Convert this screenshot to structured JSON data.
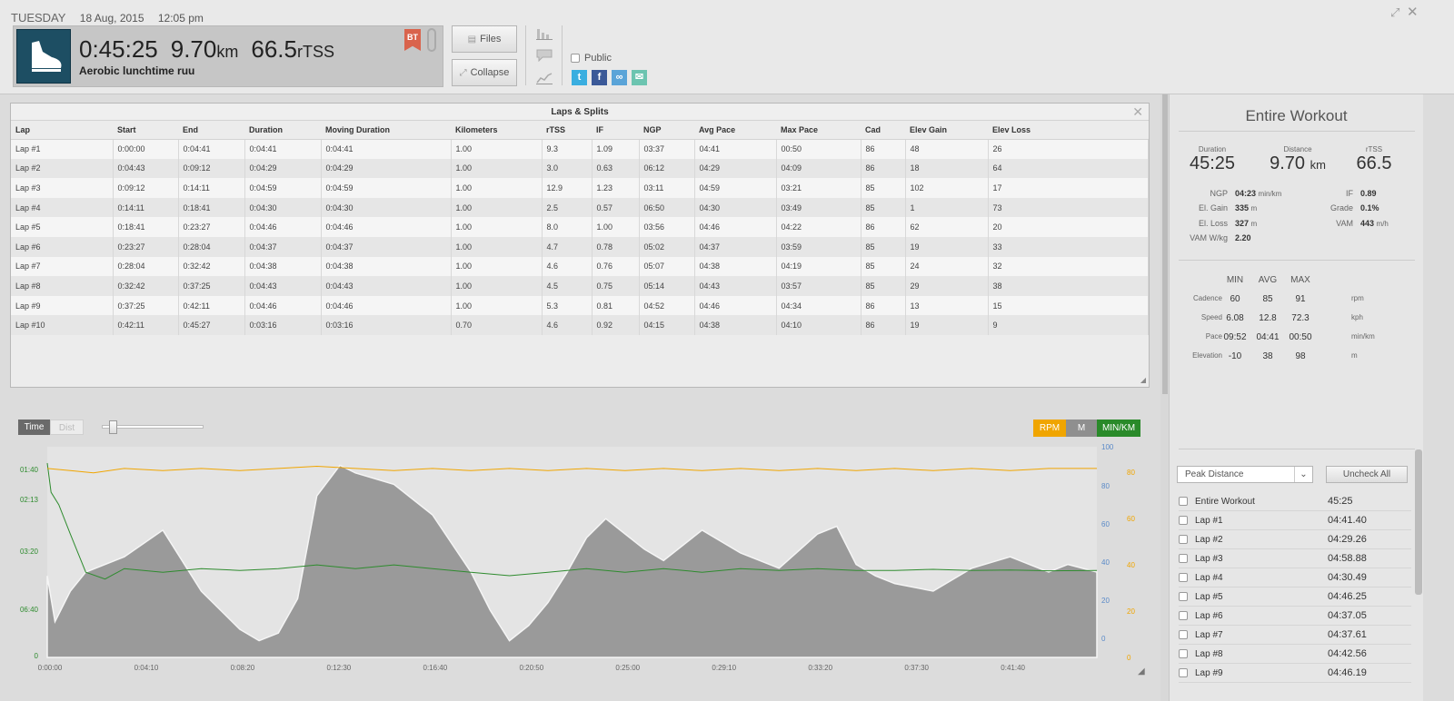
{
  "header": {
    "day": "TUESDAY",
    "date": "18 Aug, 2015",
    "time": "12:05 pm",
    "duration": "0:45:25",
    "distance": "9.70",
    "distance_unit": "km",
    "tss": "66.5",
    "tss_unit": "rTSS",
    "workout_title": "Aerobic lunchtime ruu",
    "badge": "BT",
    "files_label": "Files",
    "collapse_label": "Collapse",
    "public_label": "Public"
  },
  "laps": {
    "title": "Laps & Splits",
    "columns": [
      "Lap",
      "Start",
      "End",
      "Duration",
      "Moving Duration",
      "Kilometers",
      "rTSS",
      "IF",
      "NGP",
      "Avg Pace",
      "Max Pace",
      "Cad",
      "Elev Gain",
      "Elev Loss"
    ],
    "rows": [
      [
        "Lap #1",
        "0:00:00",
        "0:04:41",
        "0:04:41",
        "0:04:41",
        "1.00",
        "9.3",
        "1.09",
        "03:37",
        "04:41",
        "00:50",
        "86",
        "48",
        "26"
      ],
      [
        "Lap #2",
        "0:04:43",
        "0:09:12",
        "0:04:29",
        "0:04:29",
        "1.00",
        "3.0",
        "0.63",
        "06:12",
        "04:29",
        "04:09",
        "86",
        "18",
        "64"
      ],
      [
        "Lap #3",
        "0:09:12",
        "0:14:11",
        "0:04:59",
        "0:04:59",
        "1.00",
        "12.9",
        "1.23",
        "03:11",
        "04:59",
        "03:21",
        "85",
        "102",
        "17"
      ],
      [
        "Lap #4",
        "0:14:11",
        "0:18:41",
        "0:04:30",
        "0:04:30",
        "1.00",
        "2.5",
        "0.57",
        "06:50",
        "04:30",
        "03:49",
        "85",
        "1",
        "73"
      ],
      [
        "Lap #5",
        "0:18:41",
        "0:23:27",
        "0:04:46",
        "0:04:46",
        "1.00",
        "8.0",
        "1.00",
        "03:56",
        "04:46",
        "04:22",
        "86",
        "62",
        "20"
      ],
      [
        "Lap #6",
        "0:23:27",
        "0:28:04",
        "0:04:37",
        "0:04:37",
        "1.00",
        "4.7",
        "0.78",
        "05:02",
        "04:37",
        "03:59",
        "85",
        "19",
        "33"
      ],
      [
        "Lap #7",
        "0:28:04",
        "0:32:42",
        "0:04:38",
        "0:04:38",
        "1.00",
        "4.6",
        "0.76",
        "05:07",
        "04:38",
        "04:19",
        "85",
        "24",
        "32"
      ],
      [
        "Lap #8",
        "0:32:42",
        "0:37:25",
        "0:04:43",
        "0:04:43",
        "1.00",
        "4.5",
        "0.75",
        "05:14",
        "04:43",
        "03:57",
        "85",
        "29",
        "38"
      ],
      [
        "Lap #9",
        "0:37:25",
        "0:42:11",
        "0:04:46",
        "0:04:46",
        "1.00",
        "5.3",
        "0.81",
        "04:52",
        "04:46",
        "04:34",
        "86",
        "13",
        "15"
      ],
      [
        "Lap #10",
        "0:42:11",
        "0:45:27",
        "0:03:16",
        "0:03:16",
        "0.70",
        "4.6",
        "0.92",
        "04:15",
        "04:38",
        "04:10",
        "86",
        "19",
        "9"
      ]
    ]
  },
  "chart_controls": {
    "time_label": "Time",
    "dist_label": "Dist",
    "rpm_label": "RPM",
    "m_label": "M",
    "pace_label": "MIN/KM"
  },
  "chart_data": {
    "type": "line",
    "x_ticks": [
      "0:00:00",
      "0:04:10",
      "0:08:20",
      "0:12:30",
      "0:16:40",
      "0:20:50",
      "0:25:00",
      "0:29:10",
      "0:33:20",
      "0:37:30",
      "0:41:40"
    ],
    "x_range_sec": [
      0,
      2725
    ],
    "pace_axis_ticks": [
      "01:40",
      "02:13",
      "03:20",
      "06:40",
      "0"
    ],
    "elev_axis_ticks": [
      "100",
      "80",
      "60",
      "40",
      "20",
      "0"
    ],
    "cad_axis_ticks": [
      "80",
      "60",
      "40",
      "20",
      "0"
    ],
    "colors": {
      "cadence": "#f0a500",
      "elevation": "#999999",
      "pace": "#2e8b2e"
    },
    "series": [
      {
        "name": "RPM",
        "x_sec": [
          0,
          60,
          120,
          200,
          300,
          400,
          500,
          600,
          700,
          800,
          900,
          1000,
          1100,
          1200,
          1300,
          1400,
          1500,
          1600,
          1700,
          1800,
          1900,
          2000,
          2100,
          2200,
          2300,
          2400,
          2500,
          2600,
          2725
        ],
        "values": [
          86,
          85,
          84,
          86,
          85,
          86,
          85,
          86,
          87,
          86,
          85,
          86,
          85,
          86,
          85,
          86,
          85,
          86,
          85,
          86,
          85,
          86,
          85,
          86,
          85,
          86,
          85,
          86,
          86
        ]
      },
      {
        "name": "M",
        "x_sec": [
          0,
          20,
          60,
          100,
          200,
          300,
          400,
          500,
          550,
          600,
          650,
          700,
          760,
          800,
          900,
          1000,
          1100,
          1150,
          1200,
          1250,
          1300,
          1350,
          1400,
          1450,
          1500,
          1550,
          1600,
          1700,
          1800,
          1900,
          2000,
          2050,
          2100,
          2150,
          2200,
          2300,
          2400,
          2500,
          2600,
          2650,
          2725
        ],
        "values": [
          38,
          14,
          30,
          40,
          48,
          62,
          30,
          10,
          4,
          8,
          26,
          80,
          96,
          92,
          86,
          70,
          40,
          20,
          4,
          12,
          24,
          40,
          58,
          68,
          60,
          52,
          46,
          62,
          50,
          42,
          60,
          64,
          44,
          38,
          34,
          30,
          42,
          48,
          40,
          44,
          40
        ]
      },
      {
        "name": "MIN/KM",
        "x_sec": [
          0,
          10,
          30,
          60,
          100,
          150,
          200,
          300,
          400,
          500,
          600,
          700,
          800,
          900,
          1000,
          1100,
          1200,
          1300,
          1400,
          1500,
          1600,
          1700,
          1800,
          1900,
          2000,
          2100,
          2200,
          2300,
          2400,
          2500,
          2600,
          2725
        ],
        "values": [
          "01:40",
          "02:13",
          "02:30",
          "03:20",
          "04:50",
          "05:10",
          "04:40",
          "04:50",
          "04:40",
          "04:45",
          "04:40",
          "04:30",
          "04:40",
          "04:30",
          "04:40",
          "04:50",
          "05:00",
          "04:50",
          "04:40",
          "04:50",
          "04:40",
          "04:50",
          "04:40",
          "04:45",
          "04:40",
          "04:45",
          "04:45",
          "04:42",
          "04:45",
          "04:44",
          "04:46",
          "04:45"
        ]
      }
    ]
  },
  "summary": {
    "title": "Entire Workout",
    "duration_label": "Duration",
    "duration": "45:25",
    "distance_label": "Distance",
    "distance": "9.70",
    "distance_unit": "km",
    "tss_label": "rTSS",
    "tss": "66.5",
    "ngp_label": "NGP",
    "ngp": "04:23",
    "ngp_unit": "min/km",
    "if_label": "IF",
    "if": "0.89",
    "elgain_label": "El. Gain",
    "elgain": "335",
    "elgain_unit": "m",
    "grade_label": "Grade",
    "grade": "0.1%",
    "elloss_label": "El. Loss",
    "elloss": "327",
    "elloss_unit": "m",
    "vam_label": "VAM",
    "vam": "443",
    "vam_unit": "m/h",
    "vamwkg_label": "VAM W/kg",
    "vamwkg": "2.20"
  },
  "minmax": {
    "headers": [
      "MIN",
      "AVG",
      "MAX"
    ],
    "rows": [
      {
        "label": "Cadence",
        "min": "60",
        "avg": "85",
        "max": "91",
        "unit": "rpm"
      },
      {
        "label": "Speed",
        "min": "6.08",
        "avg": "12.8",
        "max": "72.3",
        "unit": "kph"
      },
      {
        "label": "Pace",
        "min": "09:52",
        "avg": "04:41",
        "max": "00:50",
        "unit": "min/km"
      },
      {
        "label": "Elevation",
        "min": "-10",
        "avg": "38",
        "max": "98",
        "unit": "m"
      }
    ]
  },
  "peaks": {
    "select_label": "Peak Distance",
    "uncheck_label": "Uncheck All",
    "items": [
      {
        "label": "Entire Workout",
        "value": "45:25"
      },
      {
        "label": "Lap #1",
        "value": "04:41.40"
      },
      {
        "label": "Lap #2",
        "value": "04:29.26"
      },
      {
        "label": "Lap #3",
        "value": "04:58.88"
      },
      {
        "label": "Lap #4",
        "value": "04:30.49"
      },
      {
        "label": "Lap #5",
        "value": "04:46.25"
      },
      {
        "label": "Lap #6",
        "value": "04:37.05"
      },
      {
        "label": "Lap #7",
        "value": "04:37.61"
      },
      {
        "label": "Lap #8",
        "value": "04:42.56"
      },
      {
        "label": "Lap #9",
        "value": "04:46.19"
      }
    ]
  }
}
